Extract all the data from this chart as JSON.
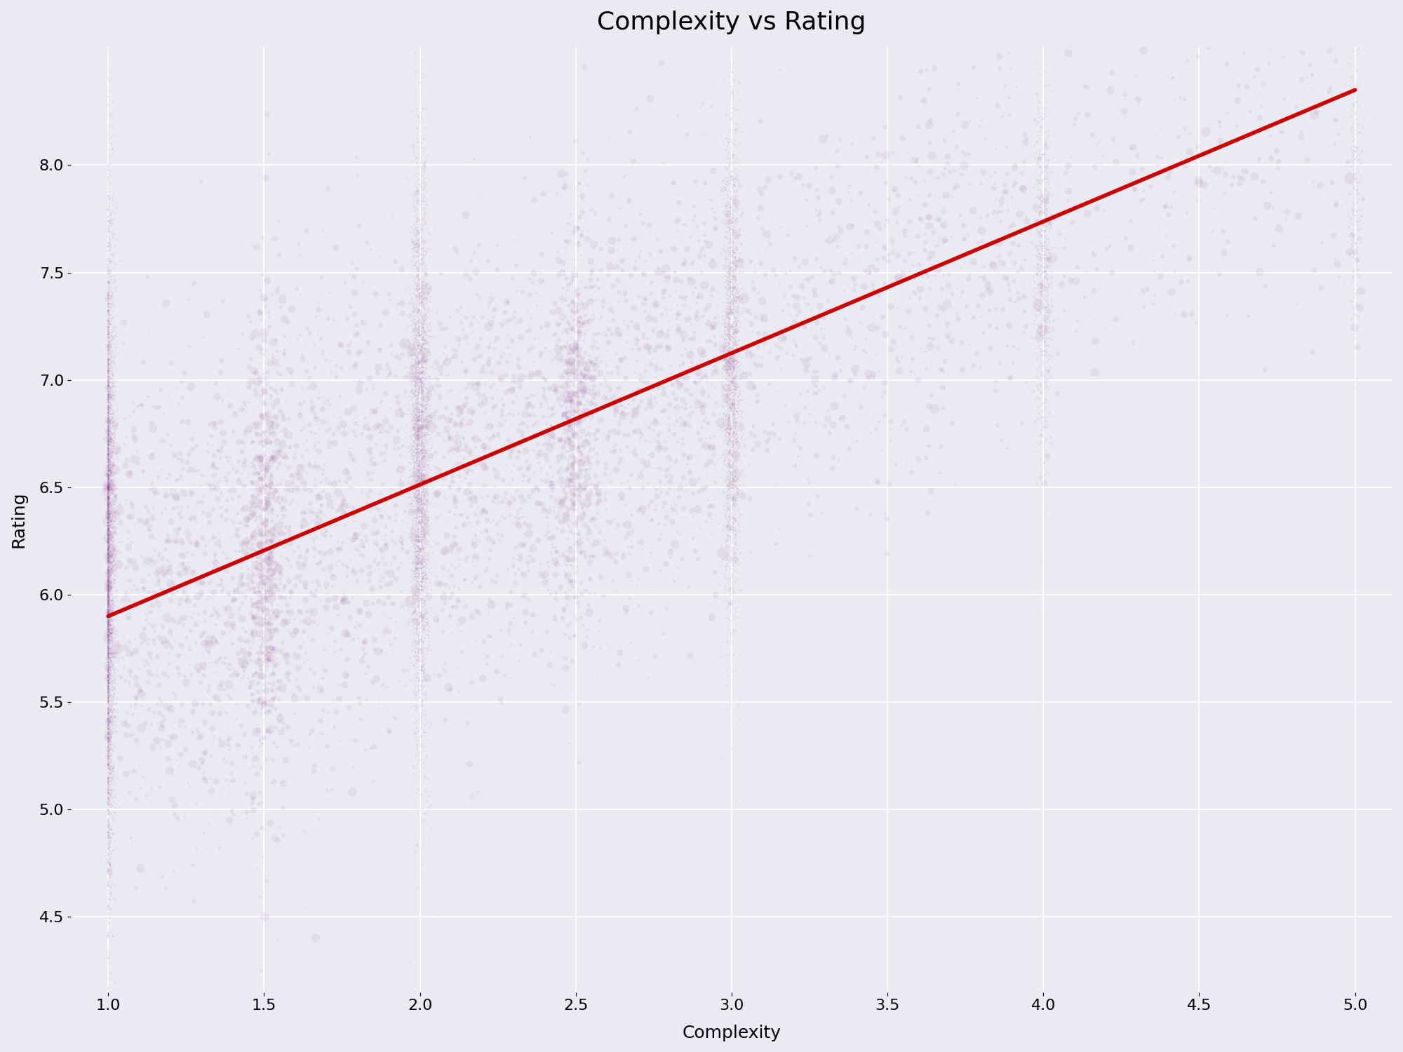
{
  "title": "Complexity vs Rating",
  "xlabel": "Complexity",
  "ylabel": "Rating",
  "xlim": [
    0.88,
    5.12
  ],
  "ylim": [
    4.15,
    8.55
  ],
  "xticks": [
    1.0,
    1.5,
    2.0,
    2.5,
    3.0,
    3.5,
    4.0,
    4.5,
    5.0
  ],
  "yticks": [
    4.5,
    5.0,
    5.5,
    6.0,
    6.5,
    7.0,
    7.5,
    8.0
  ],
  "background_color": "#eaeaf2",
  "scatter_color": "#8b3a8b",
  "scatter_alpha": 0.08,
  "trend_color": "#cc0000",
  "trend_lw": 4.0,
  "trend_x0": 1.0,
  "trend_y0": 5.9,
  "trend_x1": 5.0,
  "trend_y1": 8.35,
  "seed": 42,
  "title_fontsize": 26,
  "label_fontsize": 18,
  "tick_fontsize": 16,
  "grid_color": "#ffffff",
  "grid_alpha": 1.0,
  "grid_lw": 1.2
}
